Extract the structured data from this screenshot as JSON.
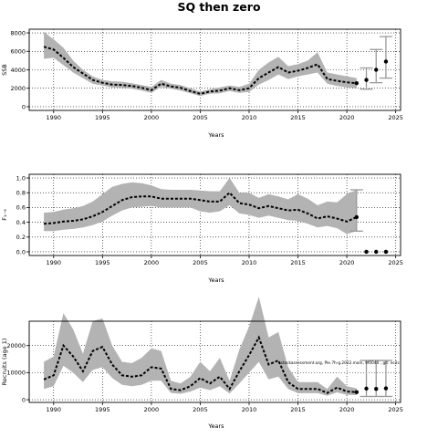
{
  "figure": {
    "title": "SQ then zero"
  },
  "chart_data": [
    {
      "type": "line",
      "ylabel": "SSB",
      "xlabel": "Years",
      "xlim": [
        1987.5,
        2025.5
      ],
      "ylim": [
        -400,
        8400
      ],
      "xticks": [
        1990,
        1995,
        2000,
        2005,
        2010,
        2015,
        2020,
        2025
      ],
      "yticks": [
        0,
        2000,
        4000,
        6000,
        8000
      ],
      "grid": "dotted",
      "x": [
        1989,
        1990,
        1991,
        1992,
        1993,
        1994,
        1995,
        1996,
        1997,
        1998,
        1999,
        2000,
        2001,
        2002,
        2003,
        2004,
        2005,
        2006,
        2007,
        2008,
        2009,
        2010,
        2011,
        2012,
        2013,
        2014,
        2015,
        2016,
        2017,
        2018,
        2019,
        2020,
        2021
      ],
      "series": [
        {
          "name": "",
          "values": [
            6500,
            6200,
            5300,
            4300,
            3600,
            2900,
            2600,
            2400,
            2350,
            2250,
            2050,
            1800,
            2500,
            2200,
            2050,
            1700,
            1400,
            1650,
            1750,
            2000,
            1800,
            2000,
            3100,
            3700,
            4300,
            3700,
            3900,
            4200,
            4600,
            3000,
            2800,
            2650,
            2550
          ],
          "upper": [
            8100,
            7300,
            6400,
            5000,
            4000,
            3300,
            2900,
            2750,
            2700,
            2550,
            2350,
            2150,
            2900,
            2500,
            2350,
            2000,
            1650,
            1900,
            2100,
            2300,
            2150,
            2500,
            4000,
            4800,
            5400,
            4400,
            4600,
            5000,
            5900,
            3700,
            3500,
            3300,
            3100
          ],
          "lower": [
            5200,
            5300,
            4500,
            3700,
            3100,
            2500,
            2300,
            2100,
            2050,
            1950,
            1750,
            1500,
            2150,
            1950,
            1750,
            1450,
            1150,
            1400,
            1450,
            1700,
            1500,
            1600,
            2400,
            2900,
            3500,
            3000,
            3300,
            3500,
            3700,
            2500,
            2250,
            2100,
            2000
          ]
        }
      ],
      "projection": {
        "x": [
          2021,
          2022,
          2023,
          2024
        ],
        "values": [
          2550,
          2900,
          4000,
          4900
        ],
        "upper": [
          2550,
          4200,
          6200,
          7600
        ],
        "lower": [
          2550,
          1900,
          2600,
          3100
        ]
      }
    },
    {
      "type": "line",
      "ylabel": "F₁₋₉",
      "xlabel": "Years",
      "xlim": [
        1987.5,
        2025.5
      ],
      "ylim": [
        -0.05,
        1.05
      ],
      "xticks": [
        1990,
        1995,
        2000,
        2005,
        2010,
        2015,
        2020,
        2025
      ],
      "yticks": [
        0.0,
        0.2,
        0.4,
        0.6,
        0.8,
        1.0
      ],
      "grid": "dotted",
      "x": [
        1989,
        1990,
        1991,
        1992,
        1993,
        1994,
        1995,
        1996,
        1997,
        1998,
        1999,
        2000,
        2001,
        2002,
        2003,
        2004,
        2005,
        2006,
        2007,
        2008,
        2009,
        2010,
        2011,
        2012,
        2013,
        2014,
        2015,
        2016,
        2017,
        2018,
        2019,
        2020,
        2021
      ],
      "series": [
        {
          "name": "",
          "values": [
            0.38,
            0.39,
            0.41,
            0.42,
            0.44,
            0.48,
            0.54,
            0.62,
            0.7,
            0.74,
            0.75,
            0.75,
            0.72,
            0.72,
            0.72,
            0.72,
            0.7,
            0.68,
            0.68,
            0.8,
            0.66,
            0.64,
            0.59,
            0.62,
            0.59,
            0.56,
            0.57,
            0.52,
            0.45,
            0.48,
            0.45,
            0.41,
            0.47
          ],
          "upper": [
            0.53,
            0.54,
            0.57,
            0.59,
            0.62,
            0.68,
            0.78,
            0.88,
            0.92,
            0.94,
            0.93,
            0.9,
            0.85,
            0.84,
            0.84,
            0.84,
            0.83,
            0.82,
            0.82,
            1.0,
            0.8,
            0.8,
            0.73,
            0.78,
            0.75,
            0.71,
            0.78,
            0.72,
            0.63,
            0.68,
            0.67,
            0.78,
            0.84
          ],
          "lower": [
            0.28,
            0.28,
            0.3,
            0.31,
            0.33,
            0.36,
            0.41,
            0.49,
            0.56,
            0.6,
            0.61,
            0.62,
            0.6,
            0.6,
            0.6,
            0.6,
            0.55,
            0.53,
            0.55,
            0.63,
            0.52,
            0.5,
            0.46,
            0.49,
            0.46,
            0.43,
            0.42,
            0.38,
            0.33,
            0.35,
            0.32,
            0.24,
            0.28
          ]
        }
      ],
      "projection": {
        "x": [
          2022,
          2023,
          2024
        ],
        "values": [
          0.0,
          0.0,
          0.0
        ]
      },
      "last_interval": {
        "x": 2021,
        "upper": 0.84,
        "lower": 0.28
      }
    },
    {
      "type": "line",
      "ylabel": "Recruits (age 1)",
      "xlabel": "Years",
      "xlim": [
        1987.5,
        2025.5
      ],
      "ylim": [
        -1000,
        29000
      ],
      "xticks": [
        1990,
        1995,
        2000,
        2005,
        2010,
        2015,
        2020,
        2025
      ],
      "yticks": [
        0,
        10000,
        20000
      ],
      "ytick_labels": [
        "0",
        "10000",
        "20000"
      ],
      "grid": "dotted",
      "annotation": "stockassessment.org, Ple.7h-g.2022.main, 9f0040 , git: ec2c",
      "x": [
        1989,
        1990,
        1991,
        1992,
        1993,
        1994,
        1995,
        1996,
        1997,
        1998,
        1999,
        2000,
        2001,
        2002,
        2003,
        2004,
        2005,
        2006,
        2007,
        2008,
        2009,
        2010,
        2011,
        2012,
        2013,
        2014,
        2015,
        2016,
        2017,
        2018,
        2019,
        2020,
        2021
      ],
      "series": [
        {
          "name": "",
          "values": [
            7500,
            9000,
            20000,
            16000,
            10500,
            18000,
            19500,
            13000,
            9000,
            8500,
            9000,
            12000,
            11500,
            4000,
            3500,
            5000,
            8000,
            6000,
            8500,
            4000,
            10500,
            16500,
            23000,
            13000,
            14500,
            6500,
            4000,
            4000,
            4000,
            2500,
            4500,
            3000,
            2800
          ],
          "upper": [
            14000,
            16000,
            32000,
            26000,
            17000,
            29000,
            30000,
            20000,
            14000,
            13500,
            15500,
            19000,
            18000,
            7000,
            6000,
            8500,
            14000,
            10500,
            15500,
            7000,
            18500,
            27000,
            38000,
            23000,
            25000,
            12000,
            6500,
            6500,
            6500,
            4000,
            8500,
            5000,
            4200
          ],
          "lower": [
            4000,
            5000,
            12500,
            10000,
            6500,
            11000,
            12000,
            8000,
            5500,
            5000,
            5500,
            7000,
            7000,
            2500,
            2200,
            3000,
            4500,
            3500,
            5000,
            2300,
            6000,
            10000,
            14000,
            7500,
            8500,
            4000,
            2400,
            2400,
            2400,
            1500,
            2700,
            1800,
            1700
          ]
        }
      ],
      "projection": {
        "x": [
          2021,
          2022,
          2023,
          2024
        ],
        "values": [
          2800,
          4100,
          4000,
          4200
        ],
        "upper": [
          2800,
          14500,
          14500,
          14500
        ],
        "lower": [
          2800,
          1200,
          1200,
          1200
        ]
      }
    }
  ]
}
